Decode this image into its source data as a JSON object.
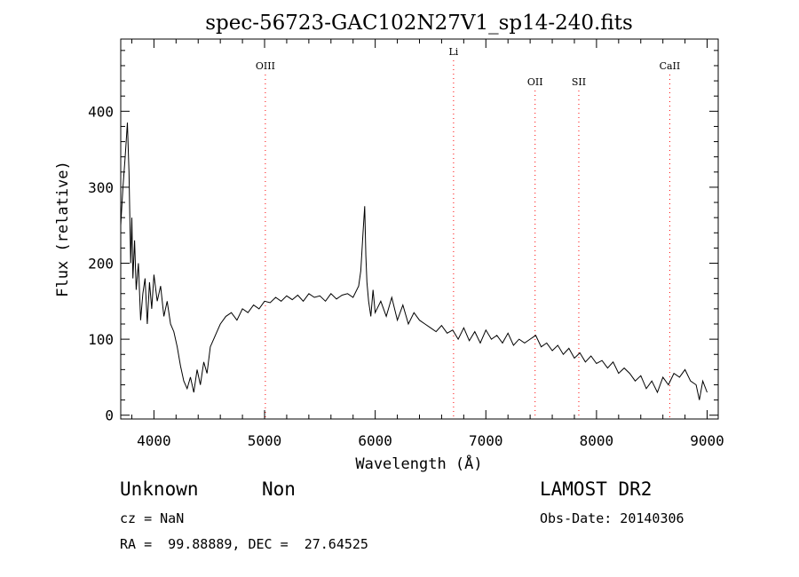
{
  "chart_data": {
    "type": "line",
    "title": "spec-56723-GAC102N27V1_sp14-240.fits",
    "xlabel": "Wavelength (Å)",
    "ylabel": "Flux (relative)",
    "xlim": [
      3700,
      9100
    ],
    "ylim": [
      -5,
      495
    ],
    "xticks": [
      4000,
      5000,
      6000,
      7000,
      8000,
      9000
    ],
    "yticks": [
      0,
      100,
      200,
      300,
      400
    ],
    "line_color": "#000000",
    "marker_color": "#ff0000",
    "grid": false,
    "lines": [
      {
        "name": "OIII",
        "x": 5007
      },
      {
        "name": "Li",
        "x": 6708
      },
      {
        "name": "OII",
        "x": 7445
      },
      {
        "name": "SII",
        "x": 7840
      },
      {
        "name": "CaII",
        "x": 8662
      }
    ],
    "series": [
      {
        "x": [
          3700,
          3720,
          3740,
          3760,
          3775,
          3790,
          3800,
          3810,
          3825,
          3840,
          3860,
          3880,
          3900,
          3920,
          3940,
          3960,
          3980,
          4000,
          4030,
          4060,
          4090,
          4120,
          4150,
          4180,
          4210,
          4240,
          4270,
          4300,
          4330,
          4360,
          4390,
          4420,
          4450,
          4480,
          4510,
          4540,
          4570,
          4600,
          4650,
          4700,
          4750,
          4800,
          4850,
          4900,
          4950,
          5000,
          5050,
          5100,
          5150,
          5200,
          5250,
          5300,
          5350,
          5400,
          5450,
          5500,
          5550,
          5600,
          5650,
          5700,
          5750,
          5800,
          5850,
          5870,
          5890,
          5905,
          5915,
          5925,
          5940,
          5960,
          5980,
          6000,
          6050,
          6100,
          6150,
          6200,
          6250,
          6300,
          6350,
          6400,
          6450,
          6500,
          6550,
          6600,
          6650,
          6700,
          6750,
          6800,
          6850,
          6900,
          6950,
          7000,
          7050,
          7100,
          7150,
          7200,
          7250,
          7300,
          7350,
          7400,
          7450,
          7500,
          7550,
          7600,
          7650,
          7700,
          7750,
          7800,
          7850,
          7900,
          7950,
          8000,
          8050,
          8100,
          8150,
          8200,
          8250,
          8300,
          8350,
          8400,
          8450,
          8500,
          8550,
          8600,
          8650,
          8700,
          8750,
          8800,
          8850,
          8900,
          8930,
          8960,
          9000
        ],
        "y": [
          250,
          300,
          340,
          385,
          320,
          200,
          260,
          180,
          230,
          165,
          200,
          125,
          160,
          180,
          120,
          175,
          140,
          185,
          150,
          170,
          130,
          150,
          120,
          110,
          90,
          65,
          45,
          35,
          50,
          30,
          60,
          40,
          70,
          55,
          90,
          100,
          110,
          120,
          130,
          135,
          125,
          140,
          135,
          145,
          140,
          150,
          148,
          155,
          150,
          157,
          152,
          158,
          150,
          160,
          155,
          157,
          150,
          160,
          153,
          158,
          160,
          155,
          170,
          190,
          240,
          275,
          210,
          175,
          150,
          130,
          165,
          135,
          150,
          130,
          155,
          125,
          145,
          120,
          135,
          125,
          120,
          115,
          110,
          118,
          108,
          112,
          100,
          115,
          98,
          110,
          95,
          112,
          100,
          105,
          95,
          108,
          92,
          100,
          95,
          100,
          105,
          90,
          95,
          85,
          92,
          80,
          88,
          75,
          82,
          70,
          78,
          68,
          72,
          62,
          70,
          55,
          62,
          55,
          45,
          52,
          35,
          45,
          30,
          50,
          40,
          55,
          50,
          60,
          45,
          40,
          20,
          45,
          30
        ]
      }
    ]
  },
  "info": {
    "class": "Unknown",
    "subclass": "Non",
    "survey": "LAMOST DR2",
    "cz": "cz = NaN",
    "obs_date": "Obs-Date: 20140306",
    "coords": "RA =  99.88889, DEC =  27.64525"
  }
}
